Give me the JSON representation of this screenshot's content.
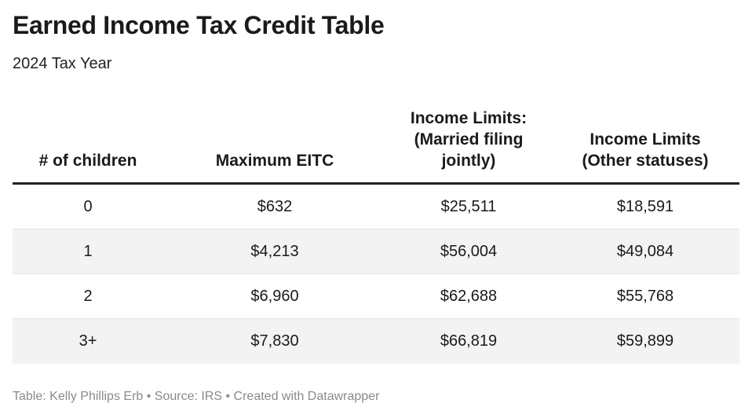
{
  "header": {
    "title": "Earned Income Tax Credit Table",
    "subtitle": "2024 Tax Year"
  },
  "table": {
    "columns": [
      "# of children",
      "Maximum EITC",
      "Income Limits: (Married filing jointly)",
      "Income Limits (Other statuses)"
    ],
    "rows": [
      [
        "0",
        "$632",
        "$25,511",
        "$18,591"
      ],
      [
        "1",
        "$4,213",
        "$56,004",
        "$49,084"
      ],
      [
        "2",
        "$6,960",
        "$62,688",
        "$55,768"
      ],
      [
        "3+",
        "$7,830",
        "$66,819",
        "$59,899"
      ]
    ]
  },
  "footer": "Table: Kelly Phillips Erb • Source: IRS • Created with Datawrapper"
}
